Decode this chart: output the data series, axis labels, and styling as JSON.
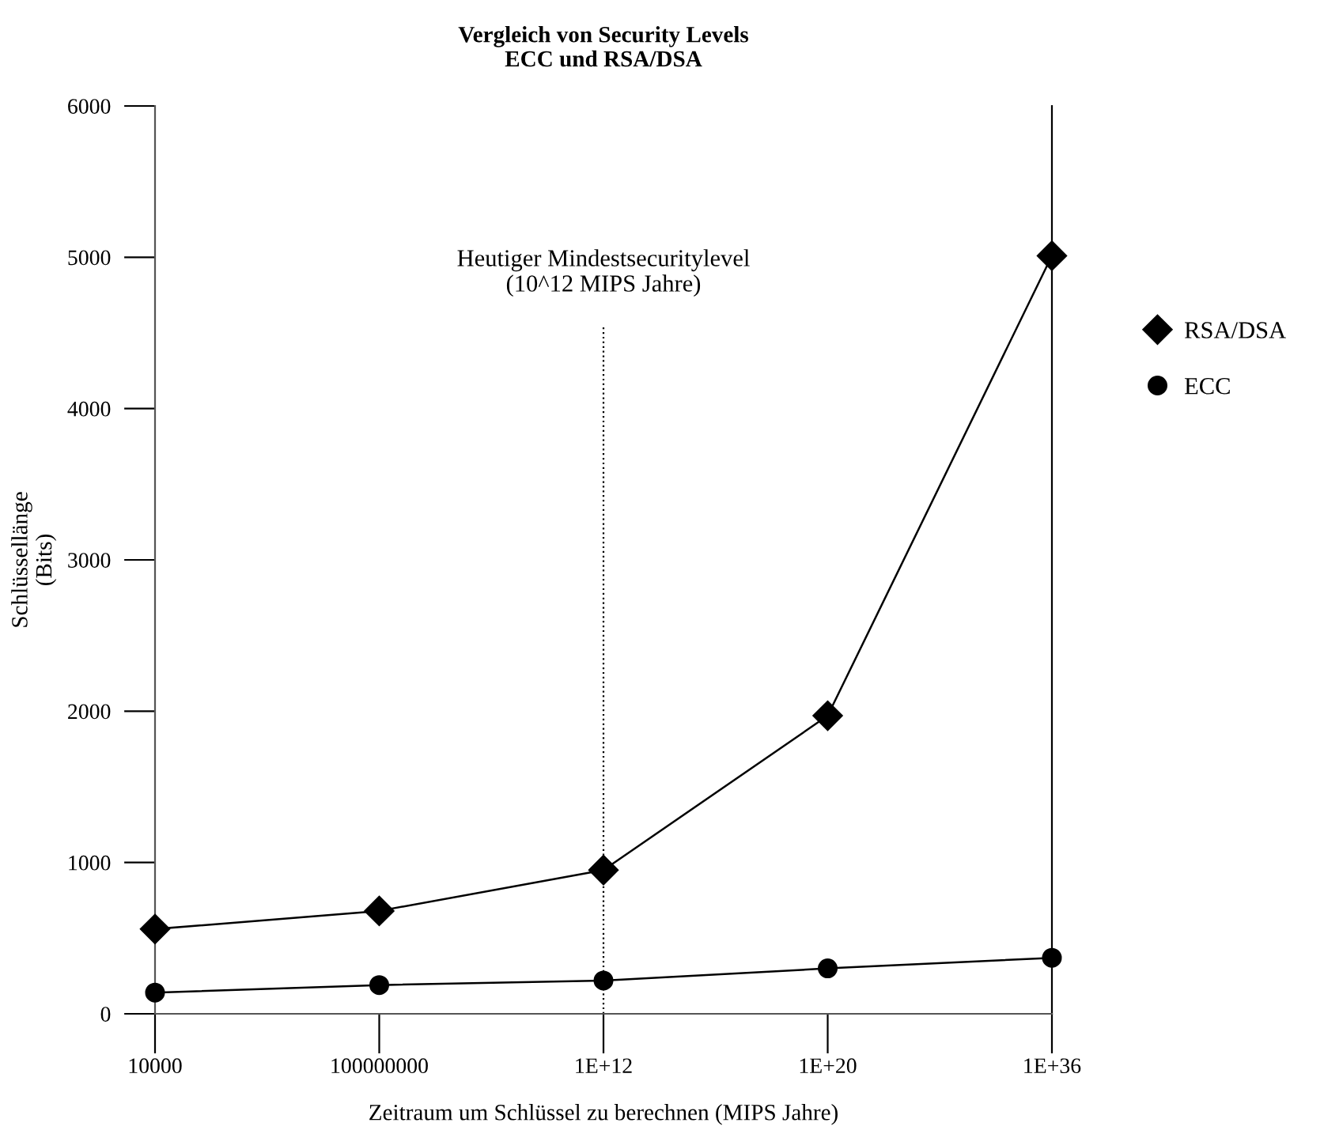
{
  "chart_data": {
    "type": "line",
    "title": "Vergleich von Security Levels\nECC und RSA/DSA",
    "xlabel": "Zeitraum um Schlüssel zu berechnen (MIPS Jahre)",
    "ylabel": "Schlüssellänge\n(Bits)",
    "categories": [
      "10000",
      "100000000",
      "1E+12",
      "1E+20",
      "1E+36"
    ],
    "series": [
      {
        "name": "RSA/DSA",
        "color": "#000000",
        "marker": "diamond",
        "values": [
          560,
          680,
          950,
          1970,
          5010
        ]
      },
      {
        "name": "ECC",
        "color": "#000000",
        "marker": "circle",
        "values": [
          140,
          190,
          220,
          300,
          370
        ]
      }
    ],
    "ylim": [
      0,
      6000
    ],
    "yticks": [
      0,
      1000,
      2000,
      3000,
      4000,
      5000,
      6000
    ],
    "ref_lines": [
      {
        "axis": "x",
        "value": "1E+12",
        "label": "Heutiger Mindestsecuritylevel\n(10^12 MIPS Jahre)",
        "line_style": "dotted",
        "color": "#000000"
      }
    ],
    "grid": false,
    "legend": "right",
    "line_style": "solid"
  }
}
